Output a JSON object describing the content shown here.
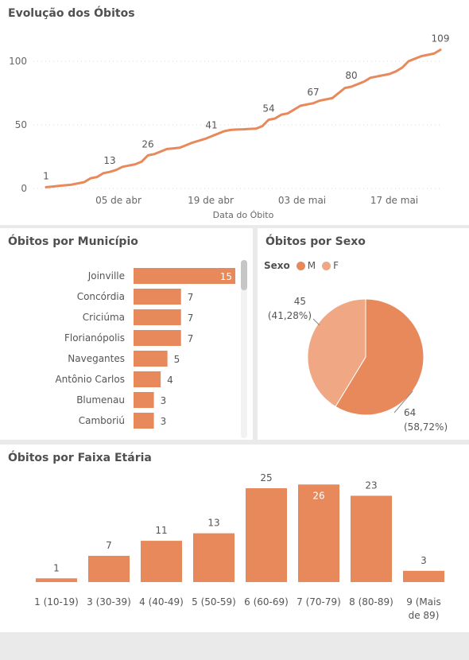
{
  "colors": {
    "accent": "#E8895C",
    "accent_light": "#F0A783",
    "text": "#505050",
    "grid": "#d8d8d8"
  },
  "line_panel": {
    "title": "Evolução dos Óbitos"
  },
  "muni_panel": {
    "title": "Óbitos por Município"
  },
  "sexo_panel": {
    "title": "Óbitos por Sexo",
    "legend_title": "Sexo"
  },
  "faixa_panel": {
    "title": "Óbitos por Faixa Etária"
  },
  "chart_data": [
    {
      "type": "line",
      "title": "Evolução dos Óbitos",
      "xlabel": "Data do Óbito",
      "ylabel": "",
      "x_ticks": [
        "05 de abr",
        "19 de abr",
        "03 de mai",
        "17 de mai"
      ],
      "y_ticks": [
        0,
        50,
        100
      ],
      "ylim": [
        0,
        115
      ],
      "grid": true,
      "series": [
        {
          "values": [
            1,
            1.5,
            2,
            2.5,
            3,
            4,
            5,
            8,
            9,
            12,
            13,
            14.5,
            17,
            18,
            19,
            21,
            26,
            27,
            29,
            31,
            31.5,
            32,
            34,
            36,
            37.5,
            39,
            41,
            43,
            45,
            46,
            46.3,
            46.5,
            46.8,
            47,
            49,
            54,
            55,
            58,
            59,
            62,
            65,
            66,
            67,
            69,
            70,
            71,
            75,
            79,
            80,
            82,
            84,
            87,
            88,
            89,
            90,
            92,
            95,
            100,
            102,
            104,
            105,
            106,
            109
          ]
        }
      ],
      "data_labels": [
        {
          "index": 0,
          "value": 1
        },
        {
          "index": 10,
          "value": 13
        },
        {
          "index": 16,
          "value": 26
        },
        {
          "index": 26,
          "value": 41
        },
        {
          "index": 35,
          "value": 54
        },
        {
          "index": 42,
          "value": 67
        },
        {
          "index": 48,
          "value": 80
        },
        {
          "index": 62,
          "value": 109
        }
      ]
    },
    {
      "type": "bar",
      "orientation": "horizontal",
      "title": "Óbitos por Município",
      "categories": [
        "Joinville",
        "Concórdia",
        "Criciúma",
        "Florianópolis",
        "Navegantes",
        "Antônio Carlos",
        "Blumenau",
        "Camboriú"
      ],
      "values": [
        15,
        7,
        7,
        7,
        5,
        4,
        3,
        3
      ],
      "xlim": [
        0,
        15
      ]
    },
    {
      "type": "pie",
      "title": "Óbitos por Sexo",
      "legend_title": "Sexo",
      "legend": "top-left",
      "slices": [
        {
          "name": "M",
          "value": 64,
          "percent": "(58,72%)",
          "color": "#E8895C"
        },
        {
          "name": "F",
          "value": 45,
          "percent": "(41,28%)",
          "color": "#F0A783"
        }
      ]
    },
    {
      "type": "bar",
      "title": "Óbitos por Faixa Etária",
      "categories": [
        [
          "1 (10-19)"
        ],
        [
          "3 (30-39)"
        ],
        [
          "4 (40-49)"
        ],
        [
          "5 (50-59)"
        ],
        [
          "6 (60-69)"
        ],
        [
          "7 (70-79)"
        ],
        [
          "8 (80-89)"
        ],
        [
          "9 (Mais",
          "de 89)"
        ]
      ],
      "values": [
        1,
        7,
        11,
        13,
        25,
        26,
        23,
        3
      ],
      "ylim": [
        0,
        26
      ]
    }
  ]
}
